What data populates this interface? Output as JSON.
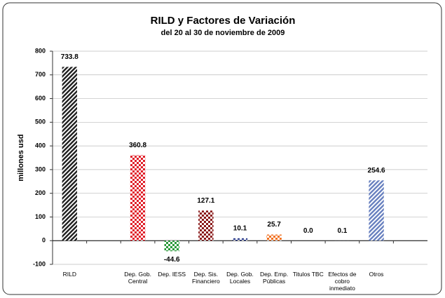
{
  "chart_data": {
    "type": "bar",
    "title": "RILD y Factores de Variación",
    "subtitle": "del 20 al 30 de noviembre de 2009",
    "y_label": "millones usd",
    "categories": [
      "RILD",
      null,
      "Dep. Gob. Central",
      "Dep. IESS",
      "Dep. Sis. Financiero",
      "Dep. Gob. Locales",
      "Dep. Emp. Públicas",
      "Titulos TBC",
      "Efectos de cobro inmediato",
      "Otros",
      null
    ],
    "values": [
      733.8,
      null,
      360.8,
      -44.6,
      127.1,
      10.1,
      25.7,
      0,
      0.1,
      254.6,
      null
    ],
    "value_labels": [
      "733.8",
      null,
      "360.8",
      "-44.6",
      "127.1",
      "10.1",
      "25.7",
      "0.0",
      "0.1",
      "254.6",
      null
    ],
    "colors": [
      "#222222",
      null,
      "#e0202a",
      "#2a9a3a",
      "#8a1a1a",
      "#2a3a8a",
      "#f07020",
      "#4a6ab0",
      "#4a6ab0",
      "#6a82c0",
      null
    ],
    "patterns": [
      "diagonal",
      null,
      "checker",
      "checker",
      "checker",
      "checker",
      "checker",
      "checker",
      "checker",
      "diagonal",
      null
    ],
    "ylim": [
      -100,
      800
    ],
    "yticks": [
      -100,
      0,
      100,
      200,
      300,
      400,
      500,
      600,
      700,
      800
    ],
    "grid": true
  }
}
